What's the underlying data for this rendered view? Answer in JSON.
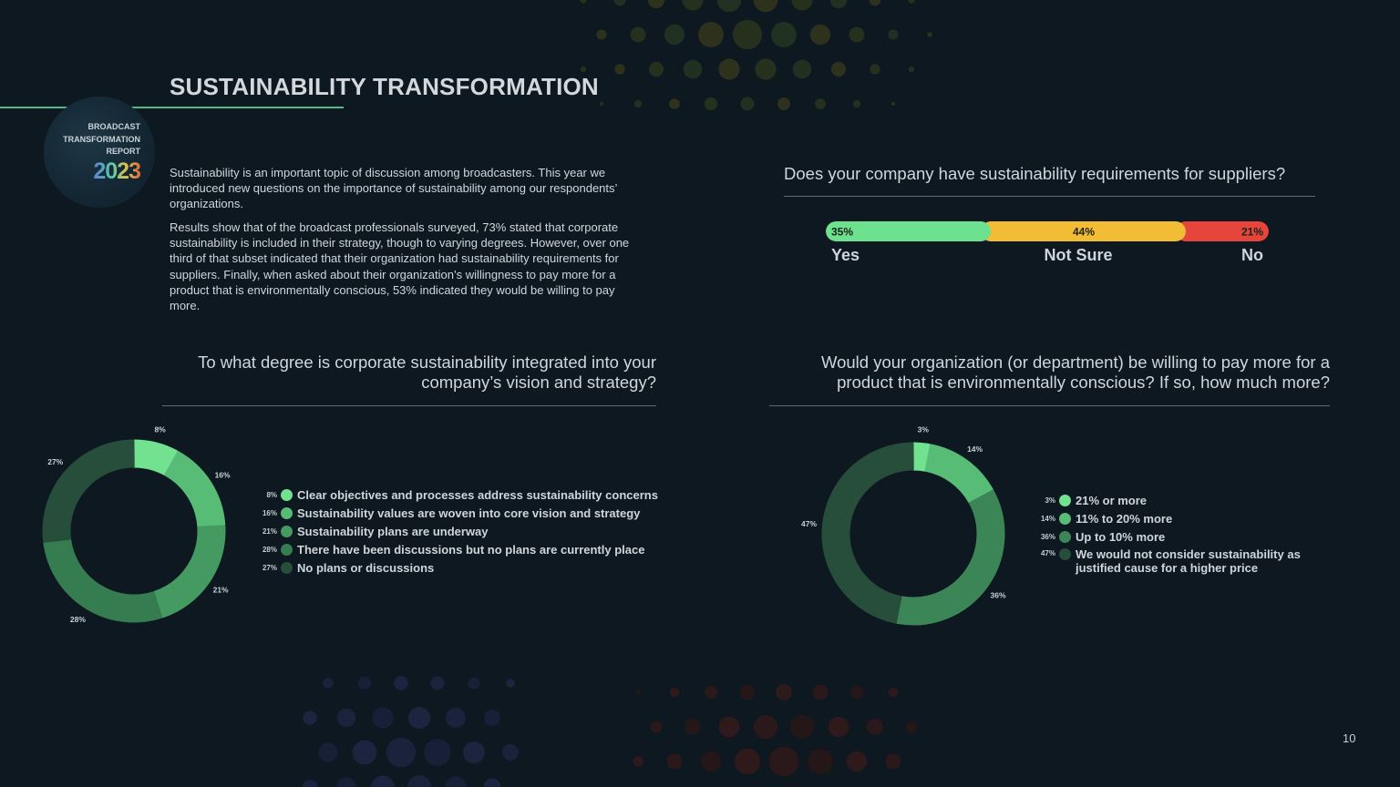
{
  "title": "SUSTAINABILITY TRANSFORMATION",
  "badge": {
    "line1": "BROADCAST",
    "line2": "TRANSFORMATION",
    "line3": "REPORT",
    "year": "2023"
  },
  "intro": {
    "paragraph1": "Sustainability is an important topic of discussion among broadcasters. This year we introduced new questions on the importance of sustainability among our respondents’ organizations.",
    "paragraph2": "Results show that of the broadcast professionals surveyed, 73% stated that corporate sustainability is included in their strategy, though to varying degrees. However, over one third of that subset indicated that their organization had sustainability requirements for suppliers. Finally, when asked about their organization’s willingness to pay more for a product that is environmentally conscious, 53% indicated they would be willing to pay more."
  },
  "page_number": "10",
  "colors": {
    "green_bright": "#6ee18e",
    "yellow": "#f2bd35",
    "red": "#e6453c",
    "donut": [
      "#72e190",
      "#57bd76",
      "#449a61",
      "#357d50",
      "#264e3b"
    ]
  },
  "chart_data": [
    {
      "type": "bar",
      "orientation": "horizontal-stacked",
      "title": "Does your company have sustainability requirements for suppliers?",
      "categories": [
        "Yes",
        "Not Sure",
        "No"
      ],
      "values": [
        35,
        44,
        21
      ],
      "labels": [
        "35%",
        "44%",
        "21%"
      ],
      "colors": [
        "#6ee18e",
        "#f2bd35",
        "#e6453c"
      ]
    },
    {
      "type": "pie",
      "style": "donut",
      "title": "To what degree is corporate sustainability integrated into your company’s vision and strategy?",
      "categories": [
        "Clear objectives and processes address sustainability concerns",
        "Sustainability values are woven into core vision and strategy",
        "Sustainability plans are underway",
        "There have been discussions but no plans are currently place",
        "No plans or discussions"
      ],
      "values": [
        8,
        16,
        21,
        28,
        27
      ],
      "labels": [
        "8%",
        "16%",
        "21%",
        "28%",
        "27%"
      ],
      "colors": [
        "#72e190",
        "#57bd76",
        "#449a61",
        "#357d50",
        "#264e3b"
      ]
    },
    {
      "type": "pie",
      "style": "donut",
      "title": "Would your organization (or department) be willing to pay more for a product that is environmentally conscious? If so, how much more?",
      "categories": [
        "21% or more",
        "11% to 20% more",
        "Up to 10% more",
        "We would not consider sustainability as justified cause for a higher price"
      ],
      "values": [
        3,
        14,
        36,
        47
      ],
      "labels": [
        "3%",
        "14%",
        "36%",
        "47%"
      ],
      "colors": [
        "#72e190",
        "#57bd76",
        "#3b8556",
        "#264e3b"
      ]
    }
  ]
}
